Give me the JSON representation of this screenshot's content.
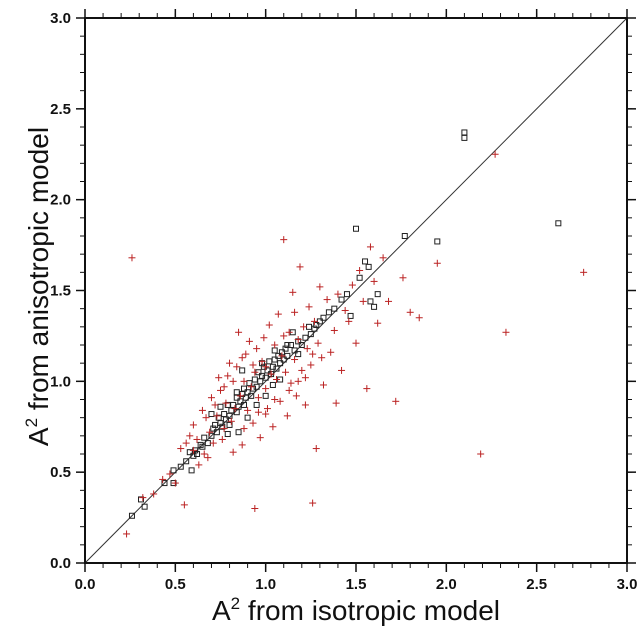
{
  "chart_data": {
    "type": "scatter",
    "title": "",
    "xlabel": {
      "base": "A",
      "sup": "2",
      "rest": " from isotropic model"
    },
    "ylabel": {
      "base": "A",
      "sup": "2",
      "rest": " from anisotropic model"
    },
    "xlim": [
      0.0,
      3.0
    ],
    "ylim": [
      0.0,
      3.0
    ],
    "xticks": [
      "0.0",
      "0.5",
      "1.0",
      "1.5",
      "2.0",
      "2.5",
      "3.0"
    ],
    "yticks": [
      "0.0",
      "0.5",
      "1.0",
      "1.5",
      "2.0",
      "2.5",
      "3.0"
    ],
    "grid": false,
    "diagonal_line": true,
    "series": [
      {
        "marker": "square",
        "color": "#222222",
        "points": [
          [
            0.26,
            0.26
          ],
          [
            0.31,
            0.35
          ],
          [
            0.33,
            0.31
          ],
          [
            0.44,
            0.44
          ],
          [
            0.49,
            0.44
          ],
          [
            0.49,
            0.51
          ],
          [
            0.53,
            0.53
          ],
          [
            0.56,
            0.56
          ],
          [
            0.58,
            0.61
          ],
          [
            0.59,
            0.51
          ],
          [
            0.61,
            0.62
          ],
          [
            0.62,
            0.6
          ],
          [
            0.64,
            0.65
          ],
          [
            0.66,
            0.69
          ],
          [
            0.68,
            0.66
          ],
          [
            0.7,
            0.7
          ],
          [
            0.71,
            0.74
          ],
          [
            0.72,
            0.76
          ],
          [
            0.73,
            0.72
          ],
          [
            0.74,
            0.8
          ],
          [
            0.75,
            0.77
          ],
          [
            0.76,
            0.75
          ],
          [
            0.77,
            0.82
          ],
          [
            0.78,
            0.79
          ],
          [
            0.79,
            0.87
          ],
          [
            0.8,
            0.81
          ],
          [
            0.8,
            0.76
          ],
          [
            0.81,
            0.84
          ],
          [
            0.82,
            0.87
          ],
          [
            0.84,
            0.83
          ],
          [
            0.84,
            0.91
          ],
          [
            0.85,
            0.86
          ],
          [
            0.86,
            0.89
          ],
          [
            0.87,
            0.93
          ],
          [
            0.88,
            0.87
          ],
          [
            0.88,
            0.96
          ],
          [
            0.89,
            0.91
          ],
          [
            0.9,
            0.94
          ],
          [
            0.91,
            0.99
          ],
          [
            0.92,
            0.92
          ],
          [
            0.93,
            0.96
          ],
          [
            0.94,
            1.01
          ],
          [
            0.95,
            0.97
          ],
          [
            0.96,
            1.05
          ],
          [
            0.97,
            1.0
          ],
          [
            0.98,
            1.03
          ],
          [
            0.99,
            1.08
          ],
          [
            1.0,
            1.02
          ],
          [
            1.01,
            1.06
          ],
          [
            1.02,
            1.11
          ],
          [
            1.03,
            1.04
          ],
          [
            1.04,
            1.08
          ],
          [
            1.05,
            1.12
          ],
          [
            1.06,
            1.07
          ],
          [
            1.07,
            1.14
          ],
          [
            1.08,
            1.1
          ],
          [
            1.09,
            1.16
          ],
          [
            1.1,
            1.12
          ],
          [
            1.11,
            1.18
          ],
          [
            1.12,
            1.14
          ],
          [
            1.14,
            1.2
          ],
          [
            1.16,
            1.17
          ],
          [
            1.18,
            1.22
          ],
          [
            1.2,
            1.2
          ],
          [
            1.22,
            1.24
          ],
          [
            1.25,
            1.26
          ],
          [
            1.27,
            1.29
          ],
          [
            1.3,
            1.33
          ],
          [
            1.32,
            1.35
          ],
          [
            1.35,
            1.38
          ],
          [
            1.38,
            1.4
          ],
          [
            1.42,
            1.45
          ],
          [
            1.45,
            1.48
          ],
          [
            1.47,
            1.36
          ],
          [
            1.5,
            1.84
          ],
          [
            1.52,
            1.57
          ],
          [
            1.55,
            1.66
          ],
          [
            1.57,
            1.63
          ],
          [
            1.58,
            1.44
          ],
          [
            1.6,
            1.41
          ],
          [
            1.62,
            1.48
          ],
          [
            1.77,
            1.8
          ],
          [
            1.95,
            1.77
          ],
          [
            2.1,
            2.37
          ],
          [
            2.1,
            2.34
          ],
          [
            2.62,
            1.87
          ],
          [
            0.85,
            0.72
          ],
          [
            0.79,
            0.71
          ],
          [
            0.65,
            0.64
          ],
          [
            0.6,
            0.59
          ],
          [
            0.87,
            1.06
          ],
          [
            0.9,
            0.8
          ],
          [
            0.95,
            0.87
          ],
          [
            1.0,
            0.92
          ],
          [
            1.04,
            0.98
          ],
          [
            1.08,
            1.01
          ],
          [
            1.12,
            1.2
          ],
          [
            1.15,
            1.27
          ],
          [
            1.05,
            1.17
          ],
          [
            0.98,
            1.1
          ],
          [
            0.84,
            0.94
          ],
          [
            0.75,
            0.86
          ],
          [
            0.7,
            0.82
          ],
          [
            1.18,
            1.15
          ],
          [
            1.24,
            1.3
          ],
          [
            1.28,
            1.31
          ]
        ]
      },
      {
        "marker": "plus",
        "color": "#bb2222",
        "points": [
          [
            0.23,
            0.16
          ],
          [
            0.26,
            1.68
          ],
          [
            0.32,
            0.36
          ],
          [
            0.38,
            0.38
          ],
          [
            0.43,
            0.46
          ],
          [
            0.47,
            0.49
          ],
          [
            0.5,
            0.44
          ],
          [
            0.53,
            0.63
          ],
          [
            0.55,
            0.32
          ],
          [
            0.56,
            0.66
          ],
          [
            0.58,
            0.7
          ],
          [
            0.6,
            0.76
          ],
          [
            0.62,
            0.68
          ],
          [
            0.63,
            0.54
          ],
          [
            0.65,
            0.84
          ],
          [
            0.66,
            0.6
          ],
          [
            0.68,
            0.58
          ],
          [
            0.69,
            0.72
          ],
          [
            0.7,
            0.91
          ],
          [
            0.71,
            0.66
          ],
          [
            0.73,
            0.81
          ],
          [
            0.74,
            1.02
          ],
          [
            0.75,
            0.95
          ],
          [
            0.76,
            0.68
          ],
          [
            0.77,
            0.74
          ],
          [
            0.78,
            0.88
          ],
          [
            0.79,
            1.03
          ],
          [
            0.8,
            1.1
          ],
          [
            0.81,
            0.78
          ],
          [
            0.82,
            0.61
          ],
          [
            0.83,
            0.85
          ],
          [
            0.84,
            1.08
          ],
          [
            0.85,
            1.27
          ],
          [
            0.86,
            0.92
          ],
          [
            0.87,
            0.65
          ],
          [
            0.88,
            1.0
          ],
          [
            0.89,
            1.15
          ],
          [
            0.9,
            0.84
          ],
          [
            0.91,
            1.22
          ],
          [
            0.92,
            0.97
          ],
          [
            0.93,
            0.77
          ],
          [
            0.94,
            0.3
          ],
          [
            0.94,
            1.05
          ],
          [
            0.95,
            1.18
          ],
          [
            0.96,
            0.91
          ],
          [
            0.97,
            0.69
          ],
          [
            0.98,
            1.11
          ],
          [
            0.99,
            1.24
          ],
          [
            1.0,
            0.96
          ],
          [
            1.01,
            0.85
          ],
          [
            1.02,
            1.31
          ],
          [
            1.03,
            1.04
          ],
          [
            1.04,
            0.75
          ],
          [
            1.05,
            1.2
          ],
          [
            1.06,
            1.01
          ],
          [
            1.07,
            1.37
          ],
          [
            1.08,
            0.89
          ],
          [
            1.09,
            1.14
          ],
          [
            1.1,
            1.78
          ],
          [
            1.11,
            1.05
          ],
          [
            1.12,
            0.81
          ],
          [
            1.13,
            1.27
          ],
          [
            1.14,
            0.99
          ],
          [
            1.15,
            1.49
          ],
          [
            1.16,
            1.12
          ],
          [
            1.17,
            0.92
          ],
          [
            1.18,
            1.23
          ],
          [
            1.19,
            1.63
          ],
          [
            1.2,
            1.06
          ],
          [
            1.21,
            1.3
          ],
          [
            1.22,
            0.87
          ],
          [
            1.23,
            1.18
          ],
          [
            1.24,
            1.41
          ],
          [
            1.25,
            1.09
          ],
          [
            1.26,
            0.33
          ],
          [
            1.27,
            1.33
          ],
          [
            1.28,
            0.63
          ],
          [
            1.29,
            1.21
          ],
          [
            1.3,
            1.52
          ],
          [
            1.31,
            1.13
          ],
          [
            1.32,
            0.98
          ],
          [
            1.34,
            1.45
          ],
          [
            1.36,
            1.16
          ],
          [
            1.38,
            1.28
          ],
          [
            1.39,
            0.88
          ],
          [
            1.4,
            1.48
          ],
          [
            1.42,
            1.06
          ],
          [
            1.44,
            1.39
          ],
          [
            1.46,
            1.33
          ],
          [
            1.48,
            1.53
          ],
          [
            1.5,
            1.21
          ],
          [
            1.52,
            1.61
          ],
          [
            1.54,
            1.44
          ],
          [
            1.56,
            0.96
          ],
          [
            1.58,
            1.74
          ],
          [
            1.6,
            1.55
          ],
          [
            1.62,
            1.32
          ],
          [
            1.65,
            1.68
          ],
          [
            1.68,
            1.44
          ],
          [
            1.72,
            0.89
          ],
          [
            1.76,
            1.57
          ],
          [
            1.8,
            1.38
          ],
          [
            1.85,
            1.35
          ],
          [
            1.95,
            1.65
          ],
          [
            2.19,
            0.6
          ],
          [
            2.27,
            2.25
          ],
          [
            2.33,
            1.27
          ],
          [
            2.76,
            1.6
          ],
          [
            0.6,
            0.62
          ],
          [
            0.67,
            0.8
          ],
          [
            0.72,
            0.87
          ],
          [
            0.82,
            1.0
          ],
          [
            0.87,
            1.13
          ],
          [
            1.0,
            1.08
          ],
          [
            1.05,
            0.9
          ],
          [
            1.13,
            0.95
          ],
          [
            1.18,
            1.0
          ],
          [
            1.22,
            1.02
          ],
          [
            0.77,
            0.97
          ],
          [
            0.93,
            1.09
          ],
          [
            1.1,
            1.25
          ],
          [
            0.96,
            0.83
          ],
          [
            0.88,
            0.74
          ],
          [
            1.0,
            0.82
          ],
          [
            1.16,
            1.38
          ],
          [
            1.26,
            1.15
          ]
        ]
      }
    ]
  }
}
